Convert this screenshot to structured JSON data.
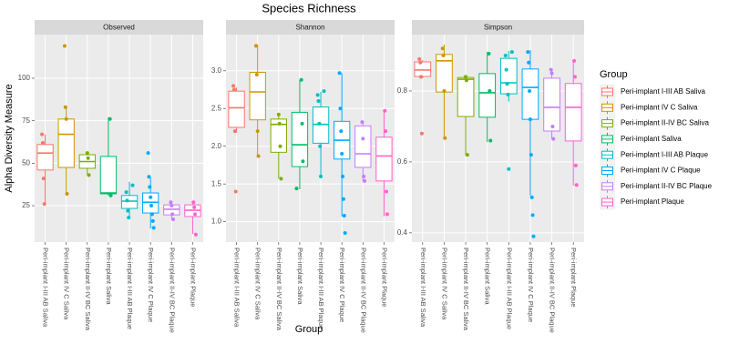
{
  "title": "Species Richness",
  "x_label": "Group",
  "y_label": "Alpha Diversity Measure",
  "legend": {
    "title": "Group",
    "items": [
      "Peri-implant I-III AB Saliva",
      "Peri-implant IV C Saliva",
      "Peri-implant II-IV BC Saliva",
      "Peri-implant Saliva",
      "Peri-implant I-III AB Plaque",
      "Peri-implant IV C Plaque",
      "Peri-implant II-IV BC Plaque",
      "Peri-implant Plaque"
    ],
    "colors": [
      "#F8766D",
      "#CD9600",
      "#7CAE00",
      "#00BE67",
      "#00BFC4",
      "#00A9FF",
      "#C77CFF",
      "#FF61CC"
    ]
  },
  "chart_data": [
    {
      "type": "box",
      "title": "Observed",
      "categories": [
        "Peri-implant I-III AB Saliva",
        "Peri-implant IV C Saliva",
        "Peri-implant II-IV BC Saliva",
        "Peri-implant Saliva",
        "Peri-implant I-III AB Plaque",
        "Peri-implant IV C Plaque",
        "Peri-implant II-IV BC Plaque",
        "Peri-implant Plaque"
      ],
      "boxes": [
        {
          "low": 26,
          "q1": 46,
          "median": 56,
          "q3": 61,
          "high": 67,
          "points": [
            67,
            62,
            41,
            26
          ]
        },
        {
          "low": 32,
          "q1": 47.5,
          "median": 67,
          "q3": 76,
          "high": 83,
          "points": [
            119,
            83,
            76,
            32
          ]
        },
        {
          "low": 43,
          "q1": 47,
          "median": 51,
          "q3": 55,
          "high": 56,
          "points": [
            56,
            53,
            43
          ]
        },
        {
          "low": 31,
          "q1": 32,
          "median": 32.5,
          "q3": 54,
          "high": 77,
          "points": [
            76,
            31
          ]
        },
        {
          "low": 17,
          "q1": 23.4,
          "median": 27.7,
          "q3": 31,
          "high": 39,
          "points": [
            37,
            33,
            28,
            22,
            18
          ]
        },
        {
          "low": 11.6,
          "q1": 20.7,
          "median": 27,
          "q3": 32.5,
          "high": 41.6,
          "points": [
            56,
            42,
            36,
            30,
            25,
            20,
            16,
            12
          ]
        },
        {
          "low": 17,
          "q1": 19.6,
          "median": 22.9,
          "q3": 25.5,
          "high": 27,
          "points": [
            27,
            25,
            20,
            17
          ]
        },
        {
          "low": 8.4,
          "q1": 18.6,
          "median": 22.3,
          "q3": 25.5,
          "high": 27,
          "points": [
            27,
            24,
            20,
            8
          ]
        }
      ],
      "ylim": [
        3.6,
        125.7
      ],
      "yticks": [
        25,
        50,
        75,
        100
      ]
    },
    {
      "type": "box",
      "title": "Shannon",
      "categories": [
        "Peri-implant I-III AB Saliva",
        "Peri-implant IV C Saliva",
        "Peri-implant II-IV BC Saliva",
        "Peri-implant Saliva",
        "Peri-implant I-III AB Plaque",
        "Peri-implant IV C Plaque",
        "Peri-implant II-IV BC Plaque",
        "Peri-implant Plaque"
      ],
      "boxes": [
        {
          "low": 2.18,
          "q1": 2.25,
          "median": 2.51,
          "q3": 2.73,
          "high": 2.78,
          "points": [
            2.8,
            2.75,
            2.2,
            1.4
          ]
        },
        {
          "low": 1.87,
          "q1": 2.35,
          "median": 2.72,
          "q3": 2.98,
          "high": 3.35,
          "points": [
            3.33,
            2.95,
            2.2,
            1.87
          ]
        },
        {
          "low": 1.57,
          "q1": 1.92,
          "median": 2.29,
          "q3": 2.36,
          "high": 2.4,
          "points": [
            2.42,
            2.3,
            2.0,
            1.57
          ]
        },
        {
          "low": 1.43,
          "q1": 1.73,
          "median": 2.02,
          "q3": 2.45,
          "high": 2.88,
          "points": [
            2.88,
            2.3,
            1.8,
            1.44
          ]
        },
        {
          "low": 1.59,
          "q1": 2.04,
          "median": 2.29,
          "q3": 2.52,
          "high": 2.72,
          "points": [
            2.73,
            2.68,
            2.6,
            2.3,
            2.0,
            1.6
          ]
        },
        {
          "low": 1.07,
          "q1": 1.83,
          "median": 2.08,
          "q3": 2.33,
          "high": 2.97,
          "points": [
            2.97,
            2.5,
            2.2,
            1.9,
            1.6,
            1.3,
            1.08,
            0.85
          ]
        },
        {
          "low": 1.54,
          "q1": 1.72,
          "median": 1.9,
          "q3": 2.27,
          "high": 2.32,
          "points": [
            2.32,
            2.1,
            1.6,
            1.54
          ]
        },
        {
          "low": 1.07,
          "q1": 1.54,
          "median": 1.87,
          "q3": 2.12,
          "high": 2.47,
          "points": [
            2.47,
            2.2,
            1.4,
            1.1
          ]
        }
      ],
      "ylim": [
        0.73,
        3.48
      ],
      "yticks": [
        {
          "value": 1,
          "label": "1.0"
        },
        1.5,
        {
          "value": 2,
          "label": "2.0"
        },
        2.5,
        {
          "value": 3,
          "label": "3.0"
        }
      ]
    },
    {
      "type": "box",
      "title": "Simpson",
      "categories": [
        "Peri-implant I-III AB Saliva",
        "Peri-implant IV C Saliva",
        "Peri-implant II-IV BC Saliva",
        "Peri-implant Saliva",
        "Peri-implant I-III AB Plaque",
        "Peri-implant IV C Plaque",
        "Peri-implant II-IV BC Plaque",
        "Peri-implant Plaque"
      ],
      "boxes": [
        {
          "low": 0.836,
          "q1": 0.841,
          "median": 0.859,
          "q3": 0.882,
          "high": 0.887,
          "points": [
            0.89,
            0.88,
            0.84,
            0.68
          ]
        },
        {
          "low": 0.667,
          "q1": 0.797,
          "median": 0.885,
          "q3": 0.903,
          "high": 0.931,
          "points": [
            0.92,
            0.9,
            0.8,
            0.667
          ]
        },
        {
          "low": 0.618,
          "q1": 0.728,
          "median": 0.833,
          "q3": 0.838,
          "high": 0.844,
          "points": [
            0.84,
            0.83,
            0.62
          ]
        },
        {
          "low": 0.656,
          "q1": 0.726,
          "median": 0.795,
          "q3": 0.849,
          "high": 0.91,
          "points": [
            0.905,
            0.8,
            0.66
          ]
        },
        {
          "low": 0.77,
          "q1": 0.792,
          "median": 0.823,
          "q3": 0.892,
          "high": 0.913,
          "points": [
            0.91,
            0.9,
            0.86,
            0.82,
            0.79,
            0.58
          ]
        },
        {
          "low": 0.505,
          "q1": 0.72,
          "median": 0.81,
          "q3": 0.862,
          "high": 0.915,
          "points": [
            0.91,
            0.88,
            0.8,
            0.72,
            0.62,
            0.5,
            0.45,
            0.39
          ]
        },
        {
          "low": 0.664,
          "q1": 0.687,
          "median": 0.754,
          "q3": 0.836,
          "high": 0.862,
          "points": [
            0.86,
            0.85,
            0.7,
            0.665
          ]
        },
        {
          "low": 0.533,
          "q1": 0.659,
          "median": 0.754,
          "q3": 0.821,
          "high": 0.885,
          "points": [
            0.885,
            0.84,
            0.59,
            0.535
          ]
        }
      ],
      "ylim": [
        0.374,
        0.959
      ],
      "yticks": [
        0.4,
        0.6,
        0.8
      ]
    }
  ]
}
